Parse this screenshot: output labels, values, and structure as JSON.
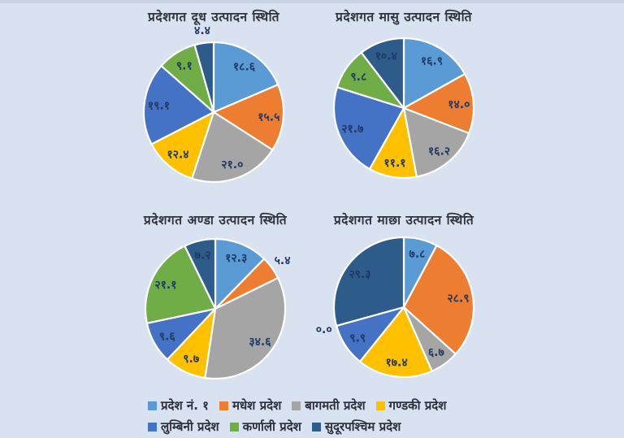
{
  "page": {
    "background_color": "#D9E2F0",
    "top_strip_color": "#C7D2E2",
    "title_color": "#30343c",
    "data_label_color": "#203864",
    "slice_border_color": "#FFFFFF"
  },
  "legend": {
    "position": "bottom",
    "items": [
      {
        "label": "प्रदेश नं. १",
        "color": "#5B9BD5"
      },
      {
        "label": "मधेश प्रदेश",
        "color": "#ED7D31"
      },
      {
        "label": "बागमती प्रदेश",
        "color": "#A5A5A5"
      },
      {
        "label": "गण्डकी प्रदेश",
        "color": "#FFC000"
      },
      {
        "label": "लुम्बिनी प्रदेश",
        "color": "#4472C4"
      },
      {
        "label": "कर्णाली प्रदेश",
        "color": "#70AD47"
      },
      {
        "label": "सुदूरपश्चिम प्रदेश",
        "color": "#2E5C8A"
      }
    ],
    "rows": [
      [
        0,
        1,
        2,
        3
      ],
      [
        4,
        5,
        6
      ]
    ]
  },
  "chart_data": [
    {
      "type": "pie",
      "title": "प्रदेशगत दूध उत्पादन स्थिति",
      "categories": [
        "प्रदेश नं. १",
        "मधेश प्रदेश",
        "बागमती प्रदेश",
        "गण्डकी प्रदेश",
        "लुम्बिनी प्रदेश",
        "कर्णाली प्रदेश",
        "सुदूरपश्चिम प्रदेश"
      ],
      "values": [
        18.6,
        15.5,
        21.0,
        12.4,
        19.1,
        9.1,
        4.4
      ],
      "value_labels": [
        "१८.६",
        "१५.५",
        "२१.०",
        "१२.४",
        "१९.१",
        "९.१",
        "४.४"
      ],
      "colors": [
        "#5B9BD5",
        "#ED7D31",
        "#A5A5A5",
        "#FFC000",
        "#4472C4",
        "#70AD47",
        "#2E5C8A"
      ],
      "start_angle_deg": 0,
      "direction": "clockwise",
      "legend_position": "bottom"
    },
    {
      "type": "pie",
      "title": "प्रदेशगत मासु उत्पादन स्थिति",
      "categories": [
        "प्रदेश नं. १",
        "मधेश प्रदेश",
        "बागमती प्रदेश",
        "गण्डकी प्रदेश",
        "लुम्बिनी प्रदेश",
        "कर्णाली प्रदेश",
        "सुदूरपश्चिम प्रदेश"
      ],
      "values": [
        16.9,
        14.0,
        16.2,
        11.1,
        21.7,
        9.8,
        10.4
      ],
      "value_labels": [
        "१६.९",
        "१४.०",
        "१६.२",
        "११.१",
        "२१.७",
        "९.८",
        "१०.४"
      ],
      "colors": [
        "#5B9BD5",
        "#ED7D31",
        "#A5A5A5",
        "#FFC000",
        "#4472C4",
        "#70AD47",
        "#2E5C8A"
      ],
      "start_angle_deg": 0,
      "direction": "clockwise",
      "legend_position": "bottom"
    },
    {
      "type": "pie",
      "title": "प्रदेशगत अण्डा उत्पादन स्थिति",
      "categories": [
        "प्रदेश नं. १",
        "मधेश प्रदेश",
        "बागमती प्रदेश",
        "गण्डकी प्रदेश",
        "लुम्बिनी प्रदेश",
        "कर्णाली प्रदेश",
        "सुदूरपश्चिम प्रदेश"
      ],
      "values": [
        12.3,
        5.4,
        34.6,
        9.7,
        9.6,
        21.1,
        7.2
      ],
      "value_labels": [
        "१२.३",
        "५.४",
        "३४.६",
        "९.७",
        "९.६",
        "२१.१",
        "७.२"
      ],
      "colors": [
        "#5B9BD5",
        "#ED7D31",
        "#A5A5A5",
        "#FFC000",
        "#4472C4",
        "#70AD47",
        "#2E5C8A"
      ],
      "start_angle_deg": 0,
      "direction": "clockwise",
      "legend_position": "bottom"
    },
    {
      "type": "pie",
      "title": "प्रदेशगत माछा उत्पादन स्थिति",
      "categories": [
        "प्रदेश नं. १",
        "मधेश प्रदेश",
        "बागमती प्रदेश",
        "गण्डकी प्रदेश",
        "लुम्बिनी प्रदेश",
        "कर्णाली प्रदेश",
        "सुदूरपश्चिम प्रदेश"
      ],
      "values": [
        7.8,
        28.9,
        6.7,
        17.4,
        9.9,
        0.0,
        29.3
      ],
      "value_labels": [
        "७.८",
        "२८.९",
        "६.७",
        "१७.४",
        "९.९",
        "०.०",
        "२९.३"
      ],
      "colors": [
        "#5B9BD5",
        "#ED7D31",
        "#A5A5A5",
        "#FFC000",
        "#4472C4",
        "#70AD47",
        "#2E5C8A"
      ],
      "start_angle_deg": 0,
      "direction": "clockwise",
      "legend_position": "bottom"
    }
  ]
}
